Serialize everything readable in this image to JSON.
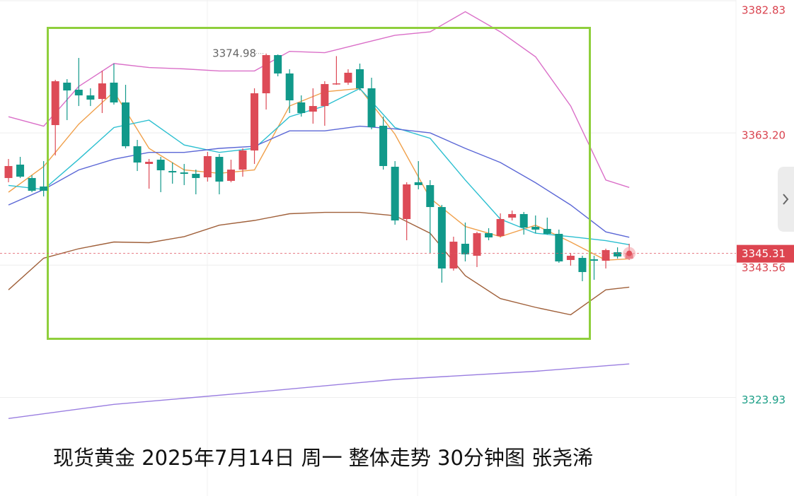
{
  "chart_data": {
    "type": "candlestick",
    "caption": "现货黄金 2025年7月14日 周一 整体走势 30分钟图 张尧浠",
    "up_color": "#dd4b57",
    "down_color": "#11998a",
    "open": [
      3356.5,
      3358.49,
      3356.5,
      3355.24,
      3364.36,
      3370.66,
      3369.61,
      3368.77,
      3368.24,
      3370.66,
      3367.72,
      3361.22,
      3358.59,
      3359.22,
      3357.54,
      3357.33,
      3357.12,
      3356.6,
      3359.64,
      3356.08,
      3357.75,
      3360.59,
      3369.08,
      3374.75,
      3372.02,
      3367.72,
      3366.36,
      3367.19,
      3370.45,
      3370.66,
      3372.65,
      3369.82,
      3364.26,
      3358.17,
      3350.41,
      3355.87,
      3355.45,
      3352.19,
      3343.07,
      3346.74,
      3344.96,
      3348.31,
      3347.89,
      3350.62,
      3351.15,
      3349.26,
      3348.94,
      3348.21,
      3344.33,
      3344.64,
      3344.43,
      3344.22,
      3345.48,
      3344.54
    ],
    "high": [
      3359.33,
      3359.64,
      3356.91,
      3359.01,
      3371.08,
      3371.18,
      3374.33,
      3369.82,
      3372.44,
      3373.49,
      3370.34,
      3362.16,
      3359.33,
      3359.64,
      3358.8,
      3358.59,
      3357.75,
      3360.38,
      3360.06,
      3359.22,
      3360.9,
      3369.82,
      3374.98,
      3374.85,
      3372.65,
      3368.77,
      3369.82,
      3370.87,
      3374.6,
      3372.65,
      3373.49,
      3371.39,
      3365.62,
      3359.01,
      3355.87,
      3359.01,
      3356.18,
      3352.51,
      3347.79,
      3349.89,
      3348.52,
      3349.05,
      3351.25,
      3351.67,
      3351.46,
      3350.94,
      3350.62,
      3348.84,
      3345.38,
      3344.96,
      3344.96,
      3346.01,
      3346.21,
      3346.74
    ],
    "low": [
      3355.87,
      3356.5,
      3354.4,
      3353.77,
      3359.85,
      3365.1,
      3367.19,
      3367.19,
      3366.15,
      3367.4,
      3360.9,
      3357.54,
      3354.92,
      3354.4,
      3355.66,
      3355.45,
      3354.08,
      3355.97,
      3354.08,
      3355.87,
      3356.7,
      3358.59,
      3366.67,
      3371.6,
      3366.15,
      3365.62,
      3364.57,
      3364.26,
      3370.34,
      3370.34,
      3369.5,
      3363.73,
      3357.75,
      3349.57,
      3347.26,
      3354.82,
      3345.38,
      3340.97,
      3342.75,
      3344.12,
      3343.28,
      3347.26,
      3347.68,
      3350.2,
      3348.1,
      3348.31,
      3348.1,
      3343.91,
      3343.49,
      3341.18,
      3341.39,
      3343.07,
      3344.54,
      3344.33
    ],
    "close": [
      3358.28,
      3356.7,
      3354.61,
      3354.61,
      3370.87,
      3369.5,
      3368.77,
      3368.14,
      3370.55,
      3367.72,
      3361.22,
      3358.8,
      3358.91,
      3357.65,
      3357.33,
      3357.12,
      3356.5,
      3359.75,
      3355.97,
      3357.75,
      3360.59,
      3369.08,
      3374.75,
      3372.02,
      3368.03,
      3366.15,
      3367.19,
      3370.45,
      3370.55,
      3372.13,
      3369.82,
      3364.05,
      3358.28,
      3350.2,
      3355.55,
      3355.45,
      3352.19,
      3343.07,
      3347.05,
      3345.17,
      3348.31,
      3347.68,
      3350.41,
      3351.15,
      3349.15,
      3348.84,
      3348.21,
      3344.12,
      3344.96,
      3342.54,
      3344.22,
      3345.8,
      3344.85,
      3345.31
    ],
    "lines": [
      {
        "color": "#f0a04b",
        "x": [
          0,
          3,
          6,
          9,
          12,
          15,
          18,
          21,
          24,
          27,
          30,
          33,
          36,
          39,
          42,
          45,
          48,
          51,
          53
        ],
        "values": [
          3354.4,
          3358.2,
          3364.5,
          3369.3,
          3360.9,
          3357.7,
          3357.2,
          3357.7,
          3367.2,
          3369.3,
          3369.8,
          3363.0,
          3353.5,
          3349.3,
          3347.8,
          3349.5,
          3347.0,
          3344.3,
          3344.5
        ]
      },
      {
        "color": "#2bbfd0",
        "x": [
          0,
          3,
          6,
          9,
          12,
          15,
          18,
          21,
          24,
          27,
          30,
          33,
          36,
          39,
          42,
          45,
          48,
          51,
          53
        ],
        "values": [
          3355.4,
          3354.8,
          3359.3,
          3364.0,
          3365.1,
          3361.4,
          3360.3,
          3360.9,
          3365.6,
          3367.2,
          3369.8,
          3364.0,
          3362.4,
          3356.2,
          3350.4,
          3348.3,
          3347.8,
          3347.2,
          3346.6
        ]
      },
      {
        "color": "#5b67d6",
        "x": [
          0,
          3,
          6,
          9,
          12,
          15,
          18,
          21,
          24,
          27,
          30,
          33,
          36,
          39,
          42,
          45,
          48,
          51,
          53
        ],
        "values": [
          3352.5,
          3354.8,
          3357.7,
          3359.3,
          3360.3,
          3360.3,
          3360.9,
          3361.2,
          3363.5,
          3363.5,
          3364.2,
          3363.8,
          3363.2,
          3360.9,
          3358.8,
          3355.8,
          3352.5,
          3348.5,
          3347.7
        ]
      },
      {
        "color": "#da6fc8",
        "x": [
          0,
          3,
          6,
          9,
          12,
          15,
          18,
          21,
          24,
          27,
          30,
          33,
          36,
          39,
          42,
          45,
          48,
          51,
          53
        ],
        "values": [
          3365.6,
          3364.2,
          3370.1,
          3373.5,
          3372.9,
          3372.7,
          3372.4,
          3372.4,
          3375.3,
          3375.1,
          3376.4,
          3377.7,
          3378.2,
          3381.2,
          3378.2,
          3374.5,
          3367.2,
          3356.2,
          3355.1
        ]
      },
      {
        "color": "#a0603a",
        "x": [
          0,
          3,
          6,
          9,
          12,
          15,
          18,
          21,
          24,
          27,
          30,
          33,
          36,
          39,
          42,
          45,
          48,
          51,
          53
        ],
        "values": [
          3339.9,
          3344.6,
          3346.0,
          3347.0,
          3346.9,
          3347.8,
          3349.5,
          3350.2,
          3351.2,
          3351.4,
          3351.4,
          3350.9,
          3348.3,
          3342.0,
          3338.6,
          3337.3,
          3336.2,
          3339.9,
          3340.3
        ]
      },
      {
        "color": "#9a7ee0",
        "x": [
          0,
          9,
          21,
          33,
          45,
          53
        ],
        "values": [
          3320.8,
          3322.9,
          3324.7,
          3326.6,
          3327.8,
          3328.9
        ]
      }
    ],
    "ylim": [
      3309.29,
      3382.93
    ],
    "yticks": [
      3382.83,
      {
        "value": 3363.2,
        "label": "3363.20"
      },
      3343.56,
      3323.93
    ],
    "ytick_colors": [
      "#d9434f",
      "#d9434f",
      "#d9434f",
      "#1a9e86"
    ],
    "grid": true
  }
}
